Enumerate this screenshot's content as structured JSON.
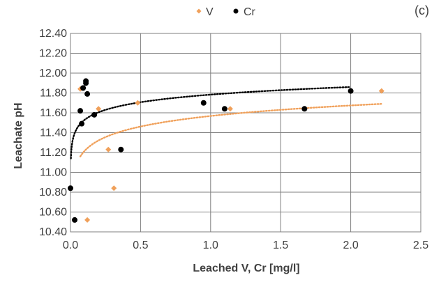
{
  "chart_data": {
    "type": "scatter",
    "panel_label": "(c)",
    "xlabel": "Leached V, Cr [mg/l]",
    "ylabel": "Leachate pH",
    "xlim": [
      0,
      2.5
    ],
    "ylim": [
      10.4,
      12.4
    ],
    "x_ticks": [
      0,
      0.5,
      1,
      1.5,
      2,
      2.5
    ],
    "x_tick_labels": [
      "0.0",
      "0.5",
      "1.0",
      "1.5",
      "2.0",
      "2.5"
    ],
    "y_ticks": [
      10.4,
      10.6,
      10.8,
      11.0,
      11.2,
      11.4,
      11.6,
      11.8,
      12.0,
      12.2,
      12.4
    ],
    "y_tick_labels": [
      "10.40",
      "10.60",
      "10.80",
      "11.00",
      "11.20",
      "11.40",
      "11.60",
      "11.80",
      "12.00",
      "12.20",
      "12.40"
    ],
    "grid": true,
    "legend_position": "top-center",
    "series": [
      {
        "name": "V",
        "color": "#f0a05a",
        "marker": "diamond",
        "x": [
          0.07,
          0.09,
          0.2,
          0.27,
          0.31,
          0.48,
          0.12,
          1.14,
          2.22
        ],
        "y": [
          11.84,
          11.85,
          11.64,
          11.23,
          10.84,
          11.7,
          10.52,
          11.64,
          11.82
        ],
        "trend": {
          "type": "log",
          "x_start": 0.07,
          "x_end": 2.22,
          "y_start": 11.16,
          "y_end": 11.69
        }
      },
      {
        "name": "Cr",
        "color": "#000000",
        "marker": "circle",
        "x": [
          0.0,
          0.03,
          0.07,
          0.08,
          0.09,
          0.11,
          0.11,
          0.12,
          0.17,
          0.36,
          0.95,
          1.1,
          1.67,
          2.0
        ],
        "y": [
          10.84,
          10.52,
          11.62,
          11.49,
          11.85,
          11.92,
          11.9,
          11.79,
          11.58,
          11.23,
          11.7,
          11.64,
          11.64,
          11.82
        ],
        "trend": {
          "type": "log",
          "x_start": 0.003,
          "x_end": 2.0,
          "y_start": 11.14,
          "y_end": 11.86
        }
      }
    ]
  }
}
